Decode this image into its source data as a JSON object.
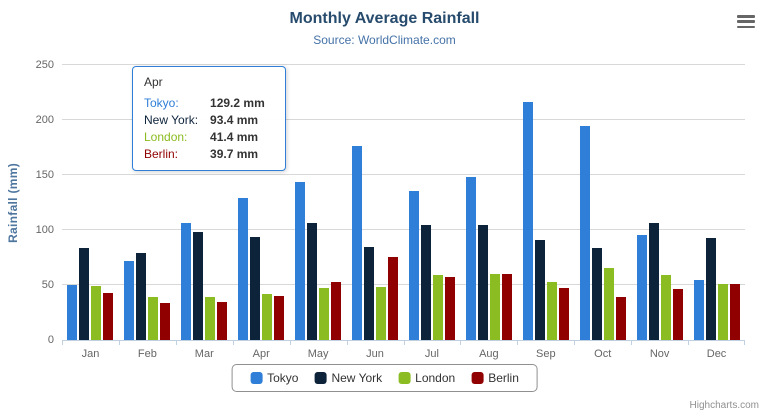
{
  "chart": {
    "title": "Monthly Average Rainfall",
    "subtitle": "Source: WorldClimate.com",
    "credit": "Highcharts.com"
  },
  "chart_data": {
    "type": "bar",
    "title": "Monthly Average Rainfall",
    "subtitle": "Source: WorldClimate.com",
    "categories": [
      "Jan",
      "Feb",
      "Mar",
      "Apr",
      "May",
      "Jun",
      "Jul",
      "Aug",
      "Sep",
      "Oct",
      "Nov",
      "Dec"
    ],
    "series": [
      {
        "name": "Tokyo",
        "color": "#2f7ed8",
        "values": [
          49.9,
          71.5,
          106.4,
          129.2,
          144.0,
          176.0,
          135.6,
          148.5,
          216.4,
          194.1,
          95.6,
          54.4
        ]
      },
      {
        "name": "New York",
        "color": "#0d233a",
        "values": [
          83.6,
          78.8,
          98.5,
          93.4,
          106.0,
          84.5,
          105.0,
          104.3,
          91.2,
          83.5,
          106.6,
          92.3
        ]
      },
      {
        "name": "London",
        "color": "#8bbc21",
        "values": [
          48.9,
          38.8,
          39.3,
          41.4,
          47.0,
          48.3,
          59.0,
          59.6,
          52.4,
          65.2,
          59.3,
          51.2
        ]
      },
      {
        "name": "Berlin",
        "color": "#910000",
        "values": [
          42.4,
          33.2,
          34.5,
          39.7,
          52.6,
          75.5,
          57.4,
          60.4,
          47.6,
          39.1,
          46.8,
          51.1
        ]
      }
    ],
    "xlabel": "",
    "ylabel": "Rainfall (mm)",
    "ylim": [
      0,
      250
    ],
    "yticks": [
      0,
      50,
      100,
      150,
      200,
      250
    ],
    "grid": true,
    "legend_position": "bottom"
  },
  "tooltip": {
    "header": "Apr",
    "rows": [
      {
        "label": "Tokyo:",
        "value": "129.2 mm",
        "color": "#2f7ed8"
      },
      {
        "label": "New York:",
        "value": "93.4 mm",
        "color": "#0d233a"
      },
      {
        "label": "London:",
        "value": "41.4 mm",
        "color": "#8bbc21"
      },
      {
        "label": "Berlin:",
        "value": "39.7 mm",
        "color": "#910000"
      }
    ]
  }
}
